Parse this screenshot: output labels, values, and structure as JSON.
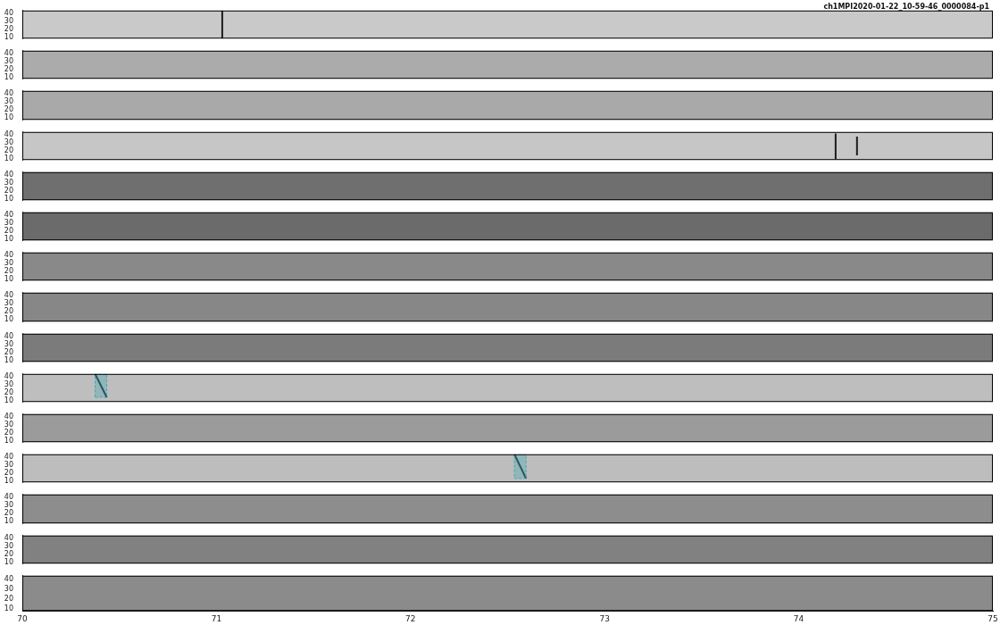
{
  "chart_data": {
    "type": "spectrogram",
    "title": "ch1MPI2020-01-22_10-59-46_0000084-p1",
    "xlim": [
      70,
      75
    ],
    "xticks": [
      70,
      71,
      72,
      73,
      74,
      75
    ],
    "ylim": [
      8,
      44
    ],
    "yticks": [
      10,
      20,
      30,
      40
    ],
    "grid": false,
    "panels": [
      {
        "color": "#c9c9c9",
        "events": [
          {
            "x": 71.03,
            "y": [
              8,
              44
            ]
          }
        ],
        "detections": []
      },
      {
        "color": "#ababab",
        "events": [],
        "detections": []
      },
      {
        "color": "#a9a9a9",
        "events": [],
        "detections": []
      },
      {
        "color": "#c6c6c6",
        "events": [
          {
            "x": 74.19,
            "y": [
              9,
              42
            ]
          },
          {
            "x": 74.3,
            "y": [
              14,
              38
            ]
          }
        ],
        "detections": []
      },
      {
        "color": "#6f6f6f",
        "events": [],
        "detections": []
      },
      {
        "color": "#6b6b6b",
        "events": [],
        "detections": []
      },
      {
        "color": "#898989",
        "events": [],
        "detections": []
      },
      {
        "color": "#878787",
        "events": [],
        "detections": []
      },
      {
        "color": "#7b7b7b",
        "events": [],
        "detections": []
      },
      {
        "color": "#bebebe",
        "events": [],
        "detections": [
          {
            "x": [
              70.375,
              70.435
            ],
            "y": [
              14,
              44
            ],
            "color": "#3fa9b5"
          }
        ]
      },
      {
        "color": "#9b9b9b",
        "events": [],
        "detections": []
      },
      {
        "color": "#bdbdbd",
        "events": [],
        "detections": [
          {
            "x": [
              72.535,
              72.595
            ],
            "y": [
              13,
              44
            ],
            "color": "#3fa9b5"
          }
        ]
      },
      {
        "color": "#8d8d8d",
        "events": [],
        "detections": []
      },
      {
        "color": "#818181",
        "events": [],
        "detections": []
      },
      {
        "color": "#8b8b8b",
        "events": [],
        "detections": []
      }
    ]
  }
}
